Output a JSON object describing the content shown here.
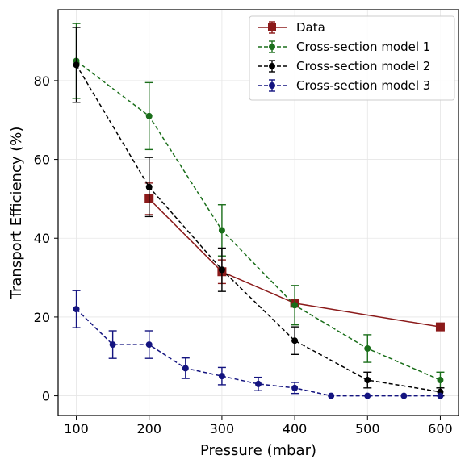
{
  "chart_data": {
    "type": "line",
    "title": "",
    "xlabel": "Pressure (mbar)",
    "ylabel": "Transport Efficiency (%)",
    "xlim": [
      75,
      625
    ],
    "ylim": [
      -5,
      98
    ],
    "xticks": [
      100,
      200,
      300,
      400,
      500,
      600
    ],
    "yticks": [
      0,
      20,
      40,
      60,
      80
    ],
    "grid": true,
    "legend_position": "top-right",
    "series": [
      {
        "name": "Data",
        "color": "#8b1a1a",
        "linestyle": "solid",
        "marker": "square",
        "x": [
          200,
          300,
          400,
          600
        ],
        "y": [
          50,
          31.5,
          23.5,
          17.5
        ],
        "err": [
          4,
          3,
          0,
          0
        ]
      },
      {
        "name": "Cross-section model 1",
        "color": "#1a6e1a",
        "linestyle": "dashed",
        "marker": "circle",
        "x": [
          100,
          200,
          300,
          400,
          500,
          600
        ],
        "y": [
          85,
          71,
          42,
          23,
          12,
          4
        ],
        "err": [
          9.5,
          8.5,
          6.5,
          5,
          3.5,
          2
        ]
      },
      {
        "name": "Cross-section model 2",
        "color": "#000000",
        "linestyle": "dashed",
        "marker": "circle",
        "x": [
          100,
          200,
          300,
          400,
          500,
          600
        ],
        "y": [
          84,
          53,
          32,
          14,
          4,
          1
        ],
        "err": [
          9.5,
          7.5,
          5.5,
          3.5,
          2,
          1
        ]
      },
      {
        "name": "Cross-section model 3",
        "color": "#141480",
        "linestyle": "dashed",
        "marker": "circle",
        "x": [
          100,
          150,
          200,
          250,
          300,
          350,
          400,
          450,
          500,
          550,
          600
        ],
        "y": [
          22,
          13,
          13,
          7,
          5,
          3,
          2,
          0,
          0,
          0,
          0
        ],
        "err": [
          4.7,
          3.5,
          3.5,
          2.6,
          2.2,
          1.7,
          1.4,
          0,
          0,
          0,
          0
        ]
      }
    ]
  }
}
